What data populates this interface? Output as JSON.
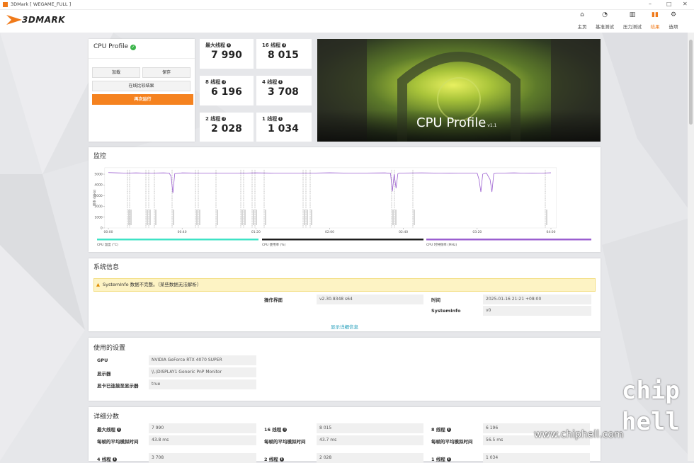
{
  "window": {
    "title": "3DMark [ WEGAME_FULL ]"
  },
  "header": {
    "logo": "3DMARK",
    "nav": [
      "主页",
      "基准测试",
      "压力测试",
      "结果",
      "选项"
    ],
    "active_index": 3
  },
  "profile": {
    "title": "CPU Profile",
    "buttons": [
      "加载",
      "保存",
      "在线比较结果",
      "再次运行"
    ]
  },
  "scores": [
    {
      "label": "最大线程",
      "value": "7 990"
    },
    {
      "label": "16 线程",
      "value": "8 015"
    },
    {
      "label": "8 线程",
      "value": "6 196"
    },
    {
      "label": "4 线程",
      "value": "3 708"
    },
    {
      "label": "2 线程",
      "value": "2 028"
    },
    {
      "label": "1 线程",
      "value": "1 034"
    }
  ],
  "hero": {
    "title": "CPU Profile",
    "version": "v1.1"
  },
  "monitor": {
    "title": "监控",
    "chart_data": {
      "type": "line",
      "y_label": "频率 (MHz)",
      "x": [
        0,
        5,
        10,
        15,
        20,
        25,
        30,
        33,
        34,
        35,
        36,
        40,
        50,
        60,
        70,
        80,
        90,
        100,
        110,
        120,
        130,
        140,
        150,
        153,
        154,
        155,
        156,
        157,
        158,
        160,
        170,
        180,
        190,
        200,
        201,
        202,
        203,
        205,
        207,
        208,
        209,
        211,
        215,
        220,
        225,
        230,
        235,
        240
      ],
      "series": [
        {
          "name": "CPU 温度 (°C)",
          "color": "#3fe3c6"
        },
        {
          "name": "CPU 使用率 (%)",
          "color": "#1e1e1e"
        },
        {
          "name": "CPU 时钟频率 (MHz)",
          "color": "#9b5fd0",
          "values": [
            5150,
            5120,
            5100,
            5120,
            5100,
            5110,
            5120,
            5100,
            4800,
            3250,
            5050,
            5120,
            5100,
            5110,
            5090,
            5120,
            5100,
            5110,
            5100,
            5130,
            5100,
            5110,
            5120,
            5080,
            3400,
            5000,
            3700,
            5050,
            5100,
            5110,
            5120,
            5100,
            5110,
            5090,
            4500,
            3350,
            5000,
            5110,
            4500,
            3350,
            5050,
            5100,
            5110,
            5120,
            5100,
            5110,
            5100,
            5130
          ]
        }
      ],
      "xlim": [
        -2,
        243
      ],
      "xticks": [
        {
          "value": 0,
          "label": "00:00"
        },
        {
          "value": 40,
          "label": "00:40"
        },
        {
          "value": 80,
          "label": "01:20"
        },
        {
          "value": 120,
          "label": "02:00"
        },
        {
          "value": 160,
          "label": "02:40"
        },
        {
          "value": 200,
          "label": "03:20"
        },
        {
          "value": 240,
          "label": "04:00"
        }
      ],
      "ylim": [
        0,
        5600
      ],
      "yticks": [
        0,
        1000,
        2000,
        3000,
        4000,
        5000
      ]
    }
  },
  "system_info": {
    "title": "系统信息",
    "warning": "SystemInfo 数据不完整。（某些数据无法解析）",
    "rows": [
      [
        "操作界面",
        "v2.30.8348 s64"
      ],
      [
        "时间",
        "2025-01-16 21:21 +08:00"
      ],
      [
        "SystemInfo",
        "v0"
      ]
    ],
    "link": "显示详细信息"
  },
  "settings": {
    "title": "使用的设置",
    "rows": [
      [
        "GPU",
        "NVIDIA GeForce RTX 4070 SUPER"
      ],
      [
        "显示器",
        "\\\\.\\DISPLAY1 Generic PnP Monitor"
      ],
      [
        "显卡已连接至显示器",
        "true"
      ]
    ]
  },
  "details": {
    "title": "详细分数",
    "rows": [
      [
        [
          "最大线程",
          "7 990"
        ],
        [
          "16 线程",
          "8 015"
        ],
        [
          "8 线程",
          "6 196"
        ]
      ],
      [
        [
          "每帧的平均模拟时间",
          "43.8 ms"
        ],
        [
          "每帧的平均模拟时间",
          "43.7 ms"
        ],
        [
          "每帧的平均模拟时间",
          "56.5 ms"
        ]
      ],
      [
        [
          "4 线程",
          "3 708"
        ],
        [
          "2 线程",
          "2 028"
        ],
        [
          "1 线程",
          "1 034"
        ]
      ]
    ]
  },
  "watermark": {
    "site": "www.chiphell.com",
    "logo_top": "chip",
    "logo_bottom": "hell"
  }
}
